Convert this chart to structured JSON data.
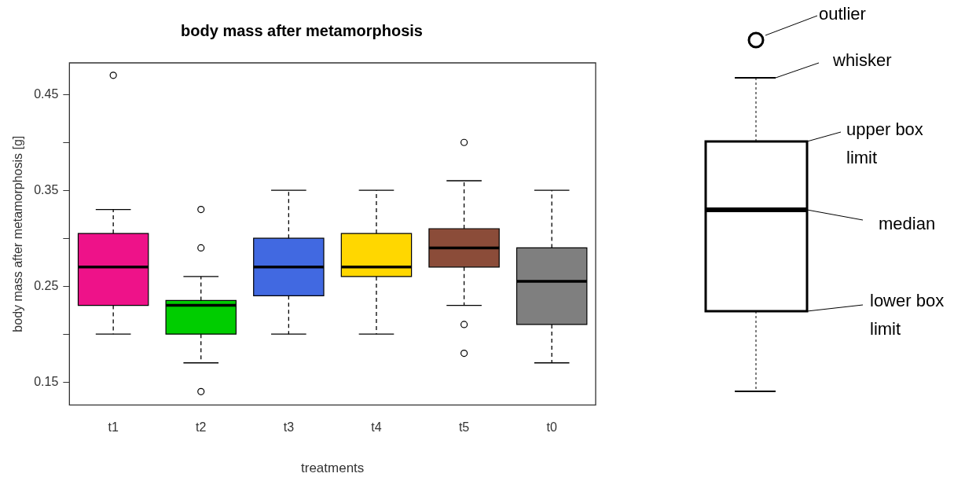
{
  "chart_data": {
    "type": "box",
    "title": "body mass after metamorphosis",
    "xlabel": "treatments",
    "ylabel": "body mass after metamorphosis [g]",
    "categories": [
      "t1",
      "t2",
      "t3",
      "t4",
      "t5",
      "t0"
    ],
    "colors": [
      "#ee1289",
      "#00cd00",
      "#4169e1",
      "#ffd700",
      "#8b4c39",
      "#7f7f7f"
    ],
    "boxes": [
      {
        "low": 0.2,
        "q1": 0.23,
        "median": 0.27,
        "q3": 0.305,
        "high": 0.33,
        "outliers": [
          0.47
        ]
      },
      {
        "low": 0.17,
        "q1": 0.2,
        "median": 0.23,
        "q3": 0.235,
        "high": 0.26,
        "outliers": [
          0.33,
          0.29,
          0.14
        ]
      },
      {
        "low": 0.2,
        "q1": 0.24,
        "median": 0.27,
        "q3": 0.3,
        "high": 0.35
      },
      {
        "low": 0.2,
        "q1": 0.26,
        "median": 0.27,
        "q3": 0.305,
        "high": 0.35
      },
      {
        "low": 0.23,
        "q1": 0.27,
        "median": 0.29,
        "q3": 0.31,
        "high": 0.36,
        "outliers": [
          0.4,
          0.21,
          0.18
        ]
      },
      {
        "low": 0.17,
        "q1": 0.21,
        "median": 0.255,
        "q3": 0.29,
        "high": 0.35
      }
    ],
    "ylim": [
      0.126,
      0.483
    ],
    "yticks": [
      0.15,
      {
        "value": 0.2,
        "label": null
      },
      0.25,
      {
        "value": 0.3,
        "label": null
      },
      0.35,
      {
        "value": 0.4,
        "label": null
      },
      0.45
    ],
    "annotations": [
      "outlier",
      "whisker",
      "upper box limit",
      "median",
      "lower box limit"
    ]
  }
}
